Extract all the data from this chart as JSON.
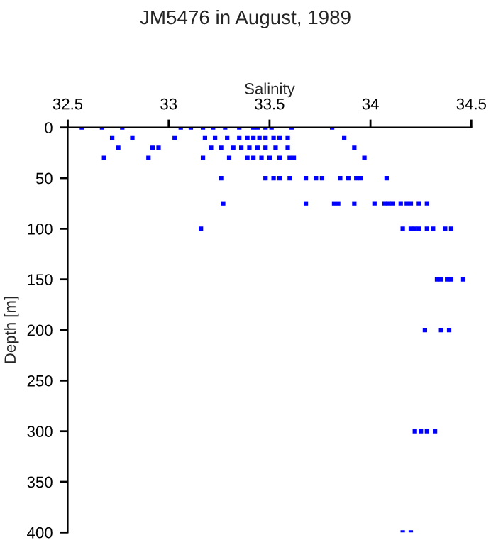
{
  "chart_data": {
    "type": "scatter",
    "title": "JM5476 in August, 1989",
    "xlabel": "Salinity",
    "ylabel": "Depth [m]",
    "xlim": [
      32.5,
      34.5
    ],
    "xticks": [
      32.5,
      33,
      33.5,
      34,
      34.5
    ],
    "ylim": [
      400,
      0
    ],
    "yticks": [
      0,
      50,
      100,
      150,
      200,
      250,
      300,
      350,
      400
    ],
    "marker": "square",
    "grid": false,
    "series": [
      {
        "color": "#0000ff",
        "x": [
          32.57,
          32.67,
          32.77,
          33.06,
          33.11,
          33.17,
          33.22,
          33.28,
          33.35,
          33.42,
          33.44,
          33.48,
          33.51,
          33.61,
          33.81,
          32.72,
          32.82,
          33.03,
          33.18,
          33.23,
          33.29,
          33.35,
          33.39,
          33.42,
          33.45,
          33.48,
          33.52,
          33.55,
          33.59,
          33.87,
          32.75,
          32.92,
          32.95,
          33.21,
          33.26,
          33.32,
          33.36,
          33.4,
          33.44,
          33.48,
          33.53,
          33.59,
          33.92,
          32.68,
          32.9,
          33.17,
          33.3,
          33.39,
          33.42,
          33.46,
          33.5,
          33.55,
          33.6,
          33.62,
          33.97,
          33.26,
          33.48,
          33.52,
          33.55,
          33.6,
          33.68,
          33.73,
          33.76,
          33.85,
          33.89,
          33.93,
          33.95,
          34.08,
          33.27,
          33.68,
          33.82,
          33.84,
          33.92,
          34.02,
          34.07,
          34.09,
          34.11,
          34.15,
          34.18,
          34.2,
          34.24,
          34.28,
          33.16,
          34.16,
          34.2,
          34.22,
          34.24,
          34.28,
          34.31,
          34.37,
          34.4,
          34.33,
          34.35,
          34.38,
          34.4,
          34.46,
          34.27,
          34.35,
          34.39,
          34.22,
          34.25,
          34.28,
          34.32,
          34.16,
          34.2
        ],
        "values": [
          0,
          0,
          0,
          0,
          0,
          0,
          0,
          0,
          0,
          0,
          0,
          0,
          0,
          0,
          0,
          10,
          10,
          10,
          10,
          10,
          10,
          10,
          10,
          10,
          10,
          10,
          10,
          10,
          10,
          10,
          20,
          20,
          20,
          20,
          20,
          20,
          20,
          20,
          20,
          20,
          20,
          20,
          20,
          30,
          30,
          30,
          30,
          30,
          30,
          30,
          30,
          30,
          30,
          30,
          30,
          50,
          50,
          50,
          50,
          50,
          50,
          50,
          50,
          50,
          50,
          50,
          50,
          50,
          75,
          75,
          75,
          75,
          75,
          75,
          75,
          75,
          75,
          75,
          75,
          75,
          75,
          75,
          100,
          100,
          100,
          100,
          100,
          100,
          100,
          100,
          100,
          150,
          150,
          150,
          150,
          150,
          200,
          200,
          200,
          300,
          300,
          300,
          300,
          400,
          400
        ]
      }
    ]
  }
}
